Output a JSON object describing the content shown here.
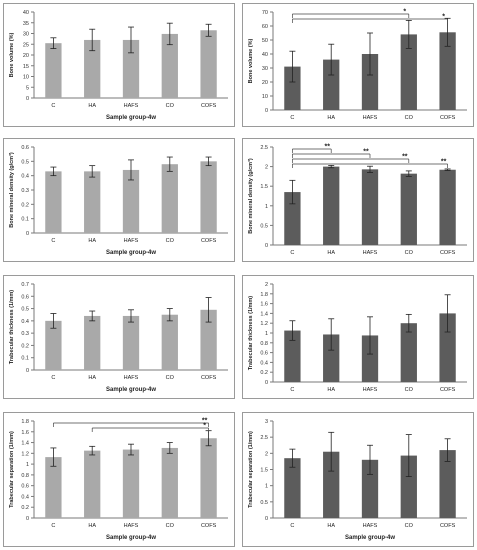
{
  "chart_data": [
    {
      "type": "bar",
      "categories": [
        "C",
        "HA",
        "HAFS",
        "CO",
        "COFS"
      ],
      "values": [
        25.5,
        27,
        27,
        29.8,
        31.5
      ],
      "errors": [
        2.5,
        5,
        6,
        5,
        2.8
      ],
      "ylim": [
        0,
        40
      ],
      "ticks": [
        0,
        5,
        10,
        15,
        20,
        25,
        30,
        35,
        40
      ],
      "xlabel": "Sample group-4w",
      "ylabel": "Bone volume (%)",
      "color": "#a9a9a9",
      "significance": []
    },
    {
      "type": "bar",
      "categories": [
        "C",
        "HA",
        "HAFS",
        "CO",
        "COFS"
      ],
      "values": [
        31,
        36,
        40,
        54,
        55.5
      ],
      "errors": [
        11,
        11,
        15,
        10,
        10
      ],
      "ylim": [
        0,
        70
      ],
      "ticks": [
        0,
        10,
        20,
        30,
        40,
        50,
        60,
        70
      ],
      "xlabel": "",
      "ylabel": "Bone volume (%)",
      "color": "#5c5c5c",
      "significance": [
        {
          "from": 0,
          "to": 3,
          "label": "*"
        },
        {
          "from": 0,
          "to": 4,
          "label": "*"
        }
      ]
    },
    {
      "type": "bar",
      "categories": [
        "C",
        "HA",
        "HAFS",
        "CO",
        "COFS"
      ],
      "values": [
        0.43,
        0.43,
        0.44,
        0.48,
        0.5
      ],
      "errors": [
        0.03,
        0.04,
        0.07,
        0.05,
        0.03
      ],
      "ylim": [
        0,
        0.6
      ],
      "ticks": [
        "0",
        "0.1",
        "0.2",
        "0.3",
        "0.4",
        "0.5",
        "0.6"
      ],
      "xlabel": "Sample group-4w",
      "ylabel": "Bone mineral density (g/cm³)",
      "color": "#a9a9a9",
      "significance": []
    },
    {
      "type": "bar",
      "categories": [
        "C",
        "HA",
        "HAFS",
        "CO",
        "COFS"
      ],
      "values": [
        1.35,
        2.0,
        1.93,
        1.82,
        1.92
      ],
      "errors": [
        0.3,
        0.03,
        0.08,
        0.07,
        0.02
      ],
      "ylim": [
        0,
        2.5
      ],
      "ticks": [
        "0",
        "0.5",
        "1",
        "1.5",
        "2",
        "2.5"
      ],
      "xlabel": "",
      "ylabel": "Bone mineral density (g/cm³)",
      "color": "#5c5c5c",
      "significance": [
        {
          "from": 0,
          "to": 1,
          "label": "**"
        },
        {
          "from": 0,
          "to": 2,
          "label": "**"
        },
        {
          "from": 0,
          "to": 3,
          "label": "**"
        },
        {
          "from": 0,
          "to": 4,
          "label": "**"
        }
      ]
    },
    {
      "type": "bar",
      "categories": [
        "C",
        "HA",
        "HAFS",
        "CO",
        "COFS"
      ],
      "values": [
        0.4,
        0.44,
        0.44,
        0.45,
        0.49
      ],
      "errors": [
        0.06,
        0.04,
        0.05,
        0.05,
        0.1
      ],
      "ylim": [
        0,
        0.7
      ],
      "ticks": [
        "0",
        "0.1",
        "0.2",
        "0.3",
        "0.4",
        "0.5",
        "0.6",
        "0.7"
      ],
      "xlabel": "Sample group-4w",
      "ylabel": "Trabecular thickness (1/mm)",
      "color": "#a9a9a9",
      "significance": []
    },
    {
      "type": "bar",
      "categories": [
        "C",
        "HA",
        "HAFS",
        "CO",
        "COFS"
      ],
      "values": [
        1.05,
        0.97,
        0.95,
        1.2,
        1.4
      ],
      "errors": [
        0.2,
        0.32,
        0.38,
        0.18,
        0.38
      ],
      "ylim": [
        0,
        2
      ],
      "ticks": [
        "0",
        "0.2",
        "0.4",
        "0.6",
        "0.8",
        "1",
        "1.2",
        "1.4",
        "1.6",
        "1.8",
        "2"
      ],
      "xlabel": "",
      "ylabel": "Trabecular thickness (1/mm)",
      "color": "#5c5c5c",
      "significance": []
    },
    {
      "type": "bar",
      "categories": [
        "C",
        "HA",
        "HAFS",
        "CO",
        "COFS"
      ],
      "values": [
        1.13,
        1.25,
        1.27,
        1.3,
        1.48
      ],
      "errors": [
        0.17,
        0.08,
        0.1,
        0.1,
        0.14
      ],
      "ylim": [
        0,
        1.8
      ],
      "ticks": [
        "0",
        "0.2",
        "0.4",
        "0.6",
        "0.8",
        "1",
        "1.2",
        "1.4",
        "1.6",
        "1.8"
      ],
      "xlabel": "Sample group-4w",
      "ylabel": "Trabecular separation (1/mm)",
      "color": "#a9a9a9",
      "significance": [
        {
          "from": 0,
          "to": 4,
          "label": "**"
        },
        {
          "from": 1,
          "to": 4,
          "label": "*"
        }
      ]
    },
    {
      "type": "bar",
      "categories": [
        "C",
        "HA",
        "HAFS",
        "CO",
        "COFS"
      ],
      "values": [
        1.85,
        2.05,
        1.8,
        1.93,
        2.1
      ],
      "errors": [
        0.28,
        0.6,
        0.45,
        0.65,
        0.35
      ],
      "ylim": [
        0,
        3
      ],
      "ticks": [
        "0",
        "0.5",
        "1",
        "1.5",
        "2",
        "2.5",
        "3"
      ],
      "xlabel": "Sample group-4w",
      "ylabel": "Trabecular separation (1/mm)",
      "color": "#5c5c5c",
      "significance": []
    }
  ]
}
